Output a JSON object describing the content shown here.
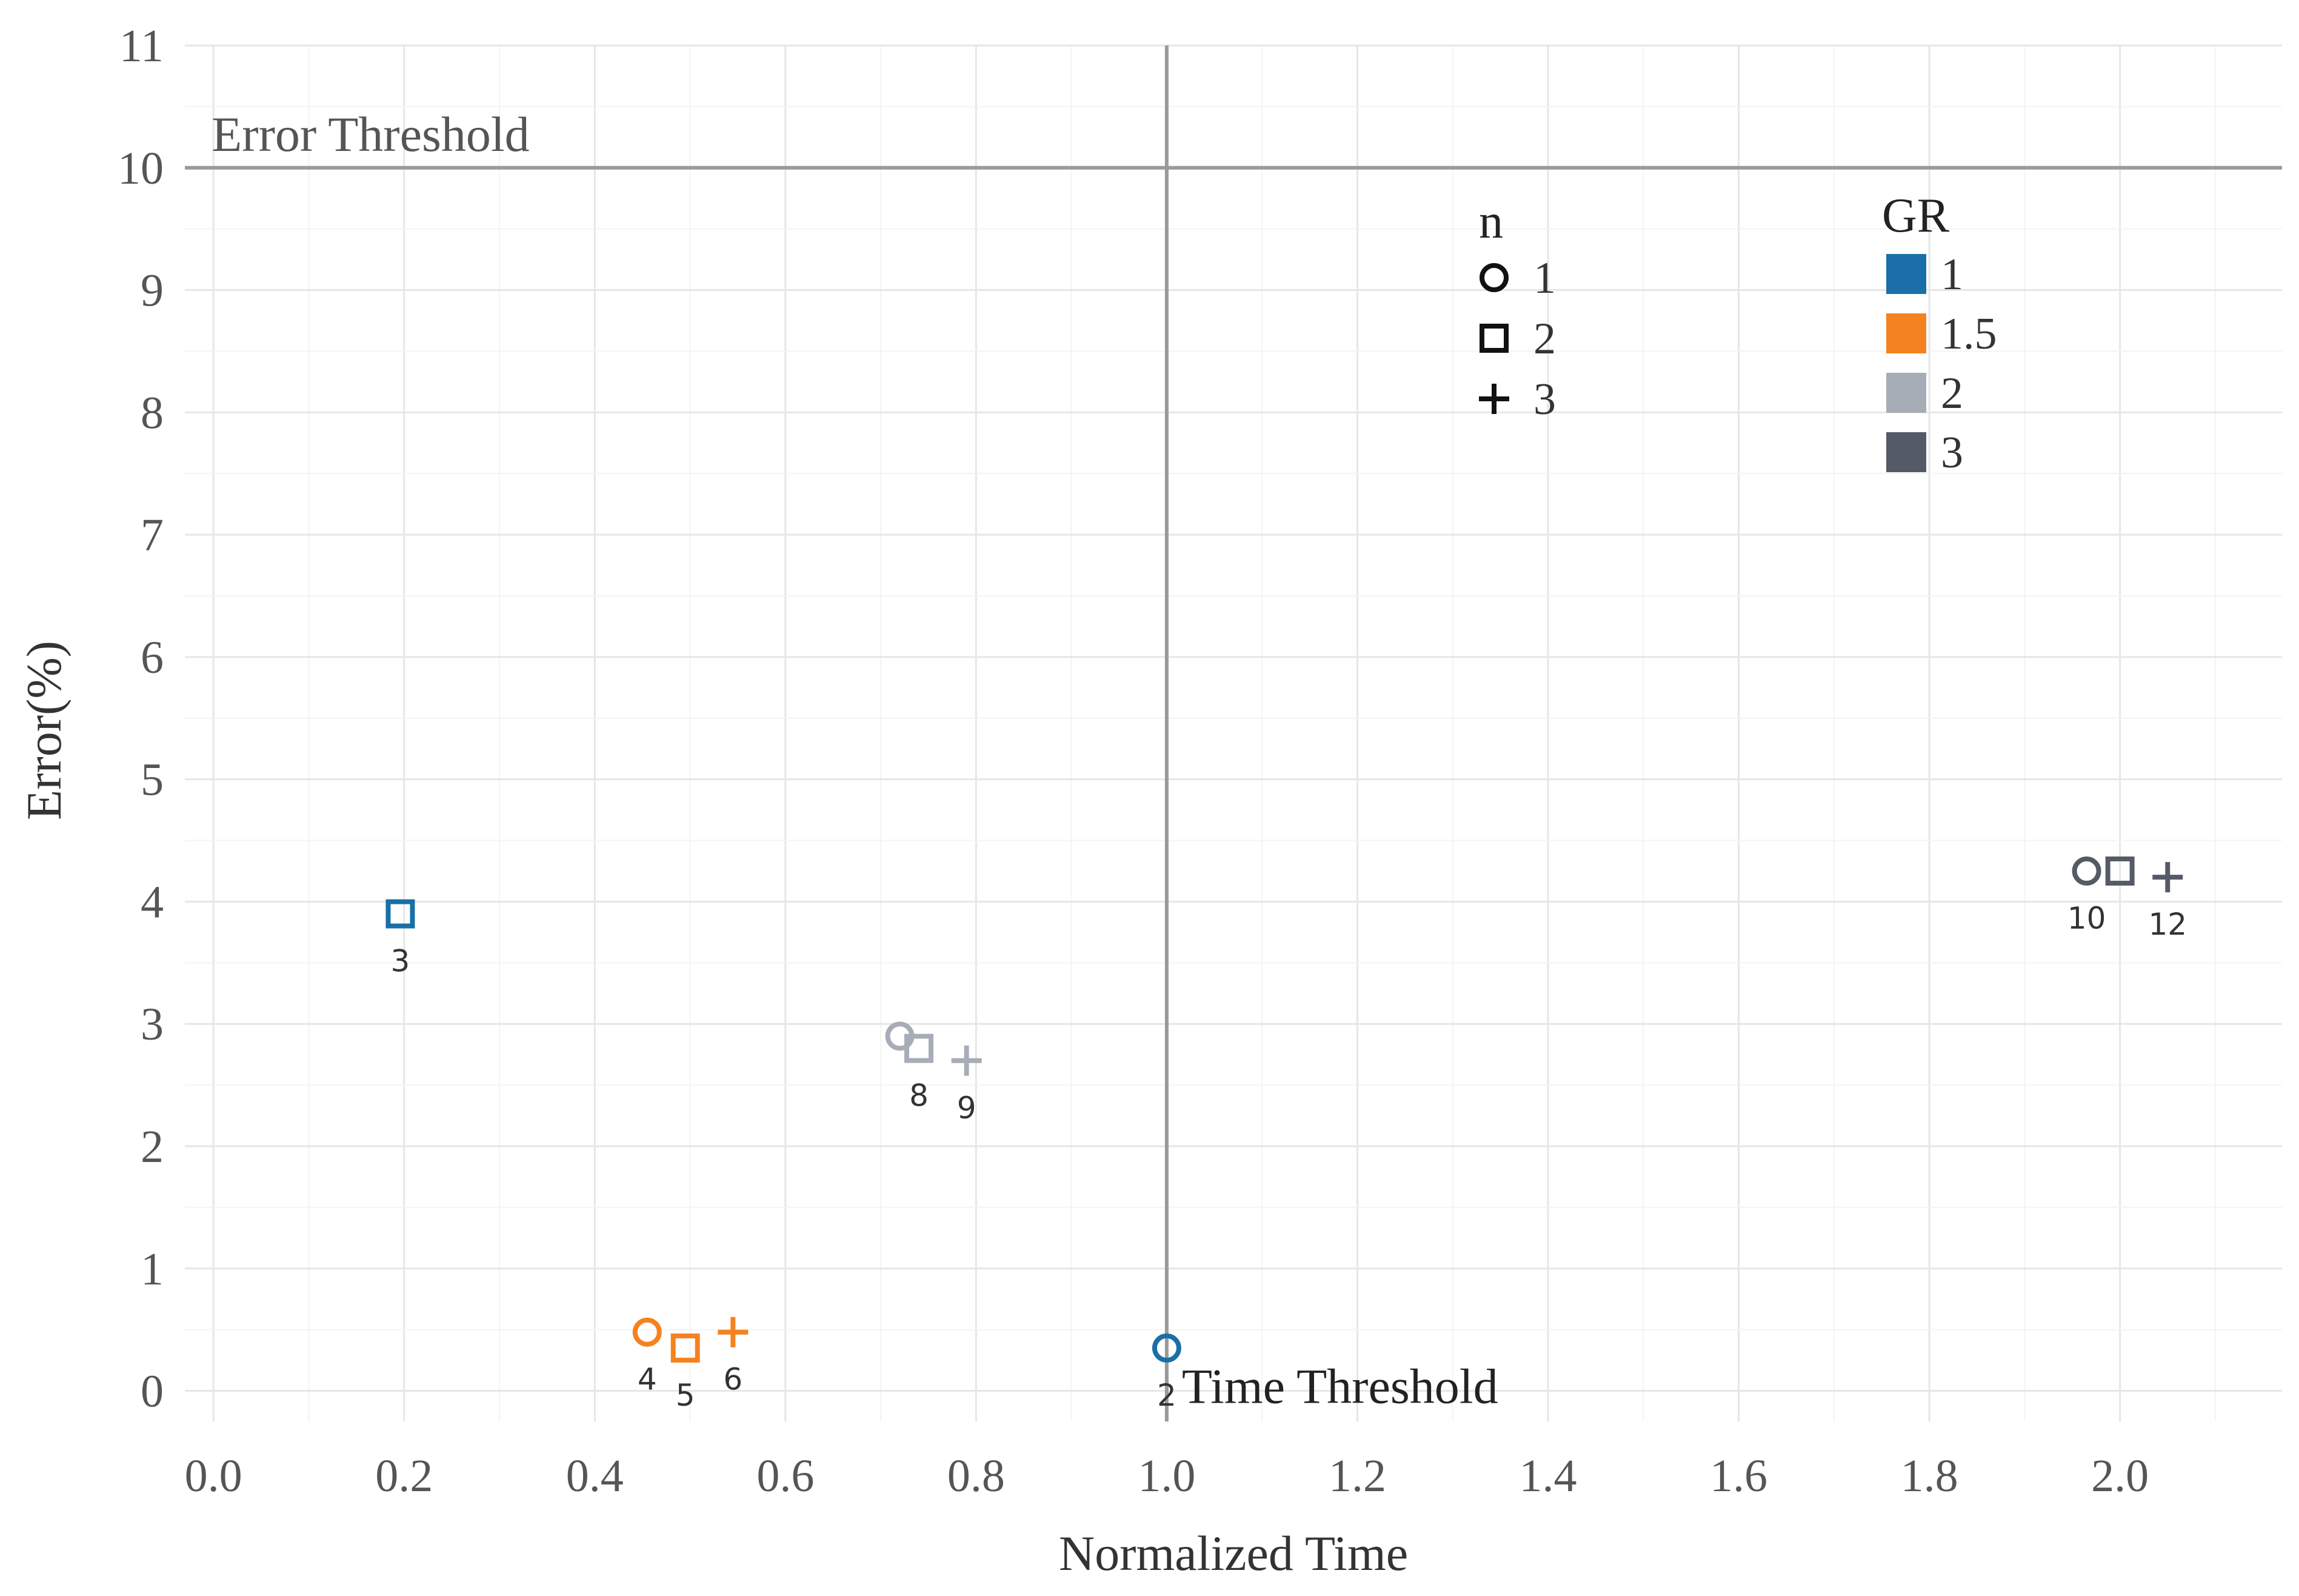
{
  "chart_data": {
    "type": "scatter",
    "xlabel": "Normalized Time",
    "ylabel": "Error(%)",
    "xlim": [
      -0.03,
      2.17
    ],
    "ylim": [
      -0.25,
      11.0
    ],
    "x_ticks": [
      0.0,
      0.2,
      0.4,
      0.6,
      0.8,
      1.0,
      1.2,
      1.4,
      1.6,
      1.8,
      2.0
    ],
    "x_tick_labels": [
      "0.0",
      "0.2",
      "0.4",
      "0.6",
      "0.8",
      "1.0",
      "1.2",
      "1.4",
      "1.6",
      "1.8",
      "2.0"
    ],
    "y_ticks": [
      0,
      1,
      2,
      3,
      4,
      5,
      6,
      7,
      8,
      9,
      10,
      11
    ],
    "y_tick_labels": [
      "0",
      "1",
      "2",
      "3",
      "4",
      "5",
      "6",
      "7",
      "8",
      "9",
      "10",
      "11"
    ],
    "grid": true,
    "thresholds": {
      "error": {
        "value": 10,
        "label": "Error Threshold"
      },
      "time": {
        "value": 1.0,
        "label": "Time Threshold"
      }
    },
    "legend_n": {
      "title": "n",
      "items": [
        {
          "value": "1",
          "shape": "circle"
        },
        {
          "value": "2",
          "shape": "square"
        },
        {
          "value": "3",
          "shape": "plus"
        }
      ]
    },
    "legend_gr": {
      "title": "GR",
      "items": [
        {
          "value": "1",
          "color": "#1a6fa8"
        },
        {
          "value": "1.5",
          "color": "#f58220"
        },
        {
          "value": "2",
          "color": "#a7adb6"
        },
        {
          "value": "3",
          "color": "#555b66"
        }
      ]
    },
    "points": [
      {
        "label": "2",
        "x": 1.0,
        "y": 0.35,
        "n": 1,
        "gr": "1"
      },
      {
        "label": "3",
        "x": 0.196,
        "y": 3.9,
        "n": 2,
        "gr": "1"
      },
      {
        "label": "4",
        "x": 0.455,
        "y": 0.48,
        "n": 1,
        "gr": "1.5"
      },
      {
        "label": "5",
        "x": 0.495,
        "y": 0.35,
        "n": 2,
        "gr": "1.5"
      },
      {
        "label": "6",
        "x": 0.545,
        "y": 0.48,
        "n": 3,
        "gr": "1.5"
      },
      {
        "label": "",
        "x": 0.72,
        "y": 2.9,
        "n": 1,
        "gr": "2"
      },
      {
        "label": "8",
        "x": 0.74,
        "y": 2.8,
        "n": 2,
        "gr": "2"
      },
      {
        "label": "9",
        "x": 0.79,
        "y": 2.7,
        "n": 3,
        "gr": "2"
      },
      {
        "label": "10",
        "x": 1.965,
        "y": 4.25,
        "n": 1,
        "gr": "3"
      },
      {
        "label": "",
        "x": 2.0,
        "y": 4.25,
        "n": 2,
        "gr": "3"
      },
      {
        "label": "12",
        "x": 2.05,
        "y": 4.2,
        "n": 3,
        "gr": "3"
      }
    ]
  }
}
